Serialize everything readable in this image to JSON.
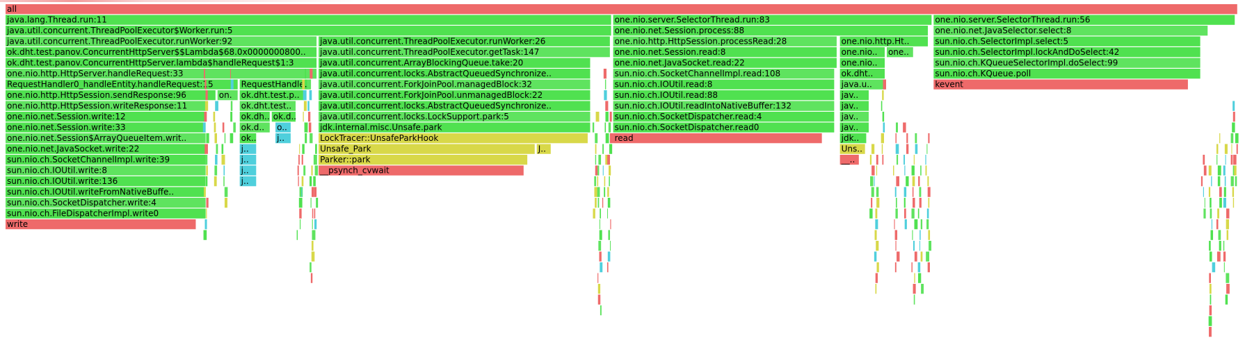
{
  "chart_data": {
    "type": "flamegraph",
    "title": "",
    "xlabel": "",
    "ylabel": "",
    "total_samples": 1000,
    "frames": [
      {
        "name": "all",
        "depth": 0,
        "start": 0,
        "width": 1000,
        "kind": "native"
      },
      {
        "name": "java.lang.Thread.run:11",
        "depth": 1,
        "start": 0,
        "width": 492,
        "kind": "java"
      },
      {
        "name": "java.util.concurrent.ThreadPoolExecutor$Worker.run:5",
        "depth": 2,
        "start": 0,
        "width": 492,
        "kind": "java"
      },
      {
        "name": "java.util.concurrent.ThreadPoolExecutor.runWorker:92",
        "depth": 3,
        "start": 0,
        "width": 253,
        "kind": "java"
      },
      {
        "name": "ok.dht.test.panov.ConcurrentHttpServer$$Lambda$68.0x0000000800..",
        "depth": 4,
        "start": 0,
        "width": 253,
        "kind": "java"
      },
      {
        "name": "ok.dht.test.panov.ConcurrentHttpServer.lambda$handleRequest$1:3",
        "depth": 5,
        "start": 0,
        "width": 253,
        "kind": "java"
      },
      {
        "name": "one.nio.http.HttpServer.handleRequest:33",
        "depth": 6,
        "start": 0,
        "width": 253,
        "kind": "java"
      },
      {
        "name": "RequestHandler0_handleEntity.handleRequest:15",
        "depth": 7,
        "start": 0,
        "width": 189,
        "kind": "java"
      },
      {
        "name": "one.nio.http.HttpSession.sendResponse:96",
        "depth": 8,
        "start": 0,
        "width": 171,
        "kind": "java"
      },
      {
        "name": "one.nio.http.HttpSession.writeResponse:11",
        "depth": 9,
        "start": 0,
        "width": 163,
        "kind": "java"
      },
      {
        "name": "one.nio.net.Session.write:12",
        "depth": 10,
        "start": 0,
        "width": 163,
        "kind": "java"
      },
      {
        "name": "one.nio.net.Session.write:33",
        "depth": 11,
        "start": 0,
        "width": 163,
        "kind": "java"
      },
      {
        "name": "one.nio.net.Session$ArrayQueueItem.writ..",
        "depth": 12,
        "start": 0,
        "width": 163,
        "kind": "java"
      },
      {
        "name": "one.nio.net.JavaSocket.write:22",
        "depth": 13,
        "start": 0,
        "width": 163,
        "kind": "java"
      },
      {
        "name": "sun.nio.ch.SocketChannelImpl.write:39",
        "depth": 14,
        "start": 0,
        "width": 163,
        "kind": "java"
      },
      {
        "name": "sun.nio.ch.IOUtil.write:8",
        "depth": 15,
        "start": 0,
        "width": 163,
        "kind": "java"
      },
      {
        "name": "sun.nio.ch.IOUtil.write:136",
        "depth": 16,
        "start": 0,
        "width": 163,
        "kind": "java"
      },
      {
        "name": "sun.nio.ch.IOUtil.writeFromNativeBuffe..",
        "depth": 17,
        "start": 0,
        "width": 163,
        "kind": "java"
      },
      {
        "name": "sun.nio.ch.SocketDispatcher.write:4",
        "depth": 18,
        "start": 0,
        "width": 163,
        "kind": "java"
      },
      {
        "name": "sun.nio.ch.FileDispatcherImpl.write0",
        "depth": 19,
        "start": 0,
        "width": 163,
        "kind": "java"
      },
      {
        "name": "write",
        "depth": 20,
        "start": 0,
        "width": 155,
        "kind": "native"
      },
      {
        "name": "on..",
        "depth": 8,
        "start": 172,
        "width": 17,
        "kind": "java"
      },
      {
        "name": "RequestHandle..",
        "depth": 7,
        "start": 190,
        "width": 56,
        "kind": "java"
      },
      {
        "name": "ok.dht.test.p..",
        "depth": 8,
        "start": 190,
        "width": 53,
        "kind": "java"
      },
      {
        "name": "ok.dht.test..",
        "depth": 9,
        "start": 190,
        "width": 46,
        "kind": "java"
      },
      {
        "name": "ok.dh..",
        "depth": 10,
        "start": 190,
        "width": 25,
        "kind": "java"
      },
      {
        "name": "ok.d..",
        "depth": 10,
        "start": 216,
        "width": 20,
        "kind": "java"
      },
      {
        "name": "ok.d..",
        "depth": 11,
        "start": 190,
        "width": 25,
        "kind": "java"
      },
      {
        "name": "ok..",
        "depth": 12,
        "start": 190,
        "width": 14,
        "kind": "java"
      },
      {
        "name": "j..",
        "depth": 13,
        "start": 190,
        "width": 14,
        "kind": "inlined"
      },
      {
        "name": "j..",
        "depth": 14,
        "start": 190,
        "width": 14,
        "kind": "inlined"
      },
      {
        "name": "j..",
        "depth": 15,
        "start": 190,
        "width": 14,
        "kind": "inlined"
      },
      {
        "name": "j..",
        "depth": 16,
        "start": 190,
        "width": 14,
        "kind": "inlined"
      },
      {
        "name": "o..",
        "depth": 11,
        "start": 219,
        "width": 13,
        "kind": "inlined"
      },
      {
        "name": "j..",
        "depth": 12,
        "start": 219,
        "width": 13,
        "kind": "inlined"
      },
      {
        "name": "java.util.concurrent.ThreadPoolExecutor.runWorker:26",
        "depth": 3,
        "start": 254,
        "width": 237,
        "kind": "java"
      },
      {
        "name": "java.util.concurrent.ThreadPoolExecutor.getTask:147",
        "depth": 4,
        "start": 254,
        "width": 237,
        "kind": "java"
      },
      {
        "name": "java.util.concurrent.ArrayBlockingQueue.take:20",
        "depth": 5,
        "start": 254,
        "width": 221,
        "kind": "java"
      },
      {
        "name": "java.util.concurrent.locks.AbstractQueuedSynchronize..",
        "depth": 6,
        "start": 254,
        "width": 221,
        "kind": "java"
      },
      {
        "name": "java.util.concurrent.ForkJoinPool.managedBlock:32",
        "depth": 7,
        "start": 254,
        "width": 221,
        "kind": "java"
      },
      {
        "name": "java.util.concurrent.ForkJoinPool.unmanagedBlock:22",
        "depth": 8,
        "start": 254,
        "width": 221,
        "kind": "java"
      },
      {
        "name": "java.util.concurrent.locks.AbstractQueuedSynchronize..",
        "depth": 9,
        "start": 254,
        "width": 221,
        "kind": "java"
      },
      {
        "name": "java.util.concurrent.locks.LockSupport.park:5",
        "depth": 10,
        "start": 254,
        "width": 221,
        "kind": "java"
      },
      {
        "name": "jdk.internal.misc.Unsafe.park",
        "depth": 11,
        "start": 254,
        "width": 221,
        "kind": "java"
      },
      {
        "name": "LockTracer::UnsafeParkHook",
        "depth": 12,
        "start": 254,
        "width": 219,
        "kind": "cpp"
      },
      {
        "name": "Unsafe_Park",
        "depth": 13,
        "start": 254,
        "width": 176,
        "kind": "cpp"
      },
      {
        "name": "J..",
        "depth": 13,
        "start": 431,
        "width": 12,
        "kind": "cpp"
      },
      {
        "name": "Parker::park",
        "depth": 14,
        "start": 254,
        "width": 170,
        "kind": "cpp"
      },
      {
        "name": "__psynch_cvwait",
        "depth": 15,
        "start": 254,
        "width": 167,
        "kind": "native"
      },
      {
        "name": "one.nio.server.SelectorThread.run:83",
        "depth": 1,
        "start": 493,
        "width": 259,
        "kind": "java"
      },
      {
        "name": "one.nio.net.Session.process:88",
        "depth": 2,
        "start": 493,
        "width": 256,
        "kind": "java"
      },
      {
        "name": "one.nio.http.HttpSession.processRead:28",
        "depth": 3,
        "start": 493,
        "width": 182,
        "kind": "java"
      },
      {
        "name": "one.nio.net.Session.read:8",
        "depth": 4,
        "start": 493,
        "width": 182,
        "kind": "java"
      },
      {
        "name": "one.nio.net.JavaSocket.read:22",
        "depth": 5,
        "start": 493,
        "width": 182,
        "kind": "java"
      },
      {
        "name": "sun.nio.ch.SocketChannelImpl.read:108",
        "depth": 6,
        "start": 493,
        "width": 180,
        "kind": "java"
      },
      {
        "name": "sun.nio.ch.IOUtil.read:8",
        "depth": 7,
        "start": 493,
        "width": 180,
        "kind": "java"
      },
      {
        "name": "sun.nio.ch.IOUtil.read:88",
        "depth": 8,
        "start": 493,
        "width": 180,
        "kind": "java"
      },
      {
        "name": "sun.nio.ch.IOUtil.readIntoNativeBuffer:132",
        "depth": 9,
        "start": 493,
        "width": 180,
        "kind": "java"
      },
      {
        "name": "sun.nio.ch.SocketDispatcher.read:4",
        "depth": 10,
        "start": 493,
        "width": 180,
        "kind": "java"
      },
      {
        "name": "sun.nio.ch.SocketDispatcher.read0",
        "depth": 11,
        "start": 493,
        "width": 180,
        "kind": "java"
      },
      {
        "name": "read",
        "depth": 12,
        "start": 493,
        "width": 170,
        "kind": "native"
      },
      {
        "name": "one.nio.http.Ht..",
        "depth": 3,
        "start": 677,
        "width": 72,
        "kind": "java"
      },
      {
        "name": "one.nio..",
        "depth": 4,
        "start": 677,
        "width": 37,
        "kind": "java"
      },
      {
        "name": "one..",
        "depth": 4,
        "start": 715,
        "width": 22,
        "kind": "java"
      },
      {
        "name": "one.nio..",
        "depth": 5,
        "start": 677,
        "width": 37,
        "kind": "java"
      },
      {
        "name": "ok.dht..",
        "depth": 6,
        "start": 677,
        "width": 37,
        "kind": "java"
      },
      {
        "name": "java.u..",
        "depth": 7,
        "start": 677,
        "width": 37,
        "kind": "java"
      },
      {
        "name": "jav..",
        "depth": 8,
        "start": 677,
        "width": 24,
        "kind": "java"
      },
      {
        "name": "jav..",
        "depth": 9,
        "start": 677,
        "width": 24,
        "kind": "java"
      },
      {
        "name": "jav..",
        "depth": 10,
        "start": 677,
        "width": 24,
        "kind": "java"
      },
      {
        "name": "jav..",
        "depth": 11,
        "start": 677,
        "width": 24,
        "kind": "java"
      },
      {
        "name": "jdk..",
        "depth": 12,
        "start": 677,
        "width": 22,
        "kind": "java"
      },
      {
        "name": "Uns..",
        "depth": 13,
        "start": 677,
        "width": 21,
        "kind": "cpp"
      },
      {
        "name": "__..",
        "depth": 14,
        "start": 677,
        "width": 16,
        "kind": "native"
      },
      {
        "name": "one.nio.server.SelectorThread.run:56",
        "depth": 1,
        "start": 753,
        "width": 245,
        "kind": "java"
      },
      {
        "name": "one.nio.net.JavaSelector.select:8",
        "depth": 2,
        "start": 753,
        "width": 223,
        "kind": "java"
      },
      {
        "name": "sun.nio.ch.SelectorImpl.select:5",
        "depth": 3,
        "start": 753,
        "width": 217,
        "kind": "java"
      },
      {
        "name": "sun.nio.ch.SelectorImpl.lockAndDoSelect:42",
        "depth": 4,
        "start": 753,
        "width": 217,
        "kind": "java"
      },
      {
        "name": "sun.nio.ch.KQueueSelectorImpl.doSelect:99",
        "depth": 5,
        "start": 753,
        "width": 217,
        "kind": "java"
      },
      {
        "name": "sun.nio.ch.KQueue.poll",
        "depth": 6,
        "start": 753,
        "width": 217,
        "kind": "java"
      },
      {
        "name": "kevent",
        "depth": 7,
        "start": 753,
        "width": 207,
        "kind": "native"
      }
    ],
    "colors": {
      "java": "#50e150",
      "java_alt": "#5fe35f",
      "inlined": "#4fcfdc",
      "cpp": "#d8d849",
      "native": "#ee6a6a",
      "background": "#ffffff"
    }
  }
}
